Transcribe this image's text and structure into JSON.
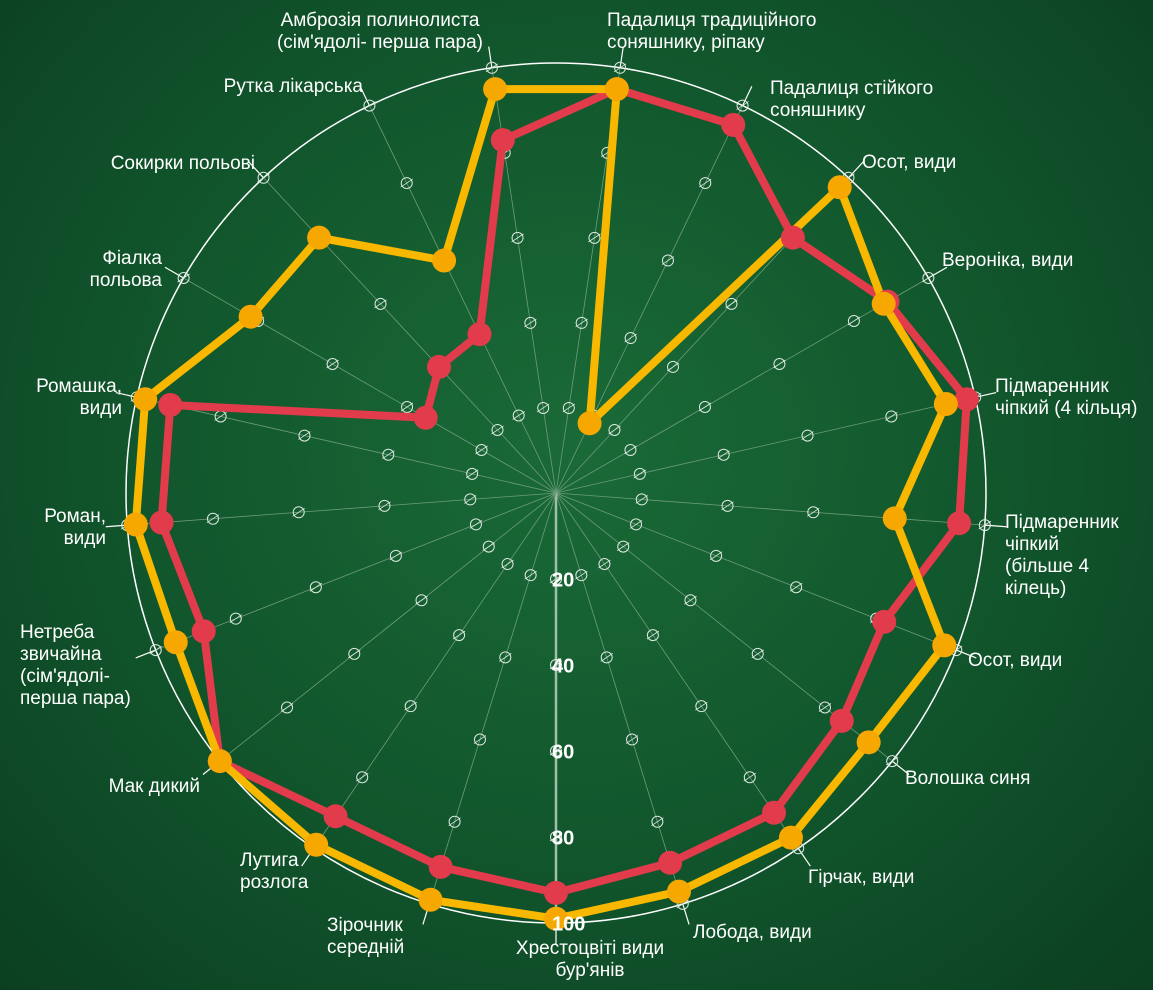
{
  "chart_data": {
    "type": "radar",
    "categories": [
      "Падалиця традиційного соняшнику, ріпаку",
      "Падалиця стійкого соняшнику",
      "Осот, види",
      "Вероніка, види",
      "Підмаренник чіпкий (4 кільця)",
      "Підмаренник чіпкий (більше 4 кілець)",
      "Осот, види",
      "Волошка синя",
      "Гірчак, види",
      "Лобода, види",
      "Хрестоцвіті види бур'янів",
      "Зірочник середній",
      "Лутига розлога",
      "Мак дикий",
      "Нетреба звичайна (сім'ядолі- перша пара)",
      "Роман, види",
      "Ромашка, види",
      "Фіалка польова",
      "Сокирки польові",
      "Рутка лікарська",
      "Амброзія полинолиста (сім'ядолі- перша пара)"
    ],
    "series": [
      {
        "color": "#e23b4b",
        "values": [
          95,
          95,
          81,
          89,
          98,
          94,
          82,
          85,
          90,
          90,
          93,
          91,
          91,
          100,
          88,
          92,
          92,
          35,
          40,
          41,
          83
        ]
      },
      {
        "color": "#f9b800",
        "values": [
          95,
          18,
          97,
          88,
          93,
          79,
          97,
          93,
          97,
          97,
          99,
          99,
          99,
          100,
          95,
          98,
          98,
          82,
          81,
          60,
          95
        ]
      }
    ],
    "ylim": [
      0,
      100
    ],
    "yticks": [
      20,
      40,
      60,
      80,
      100
    ],
    "grid": true
  }
}
